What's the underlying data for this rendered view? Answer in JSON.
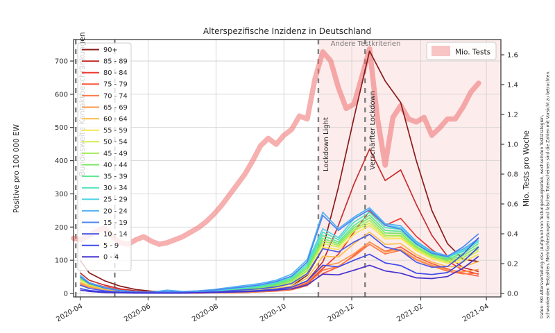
{
  "title": "Alterspezifische Inzidenz in Deutschland",
  "axes": {
    "left_label": "Positive pro 100 000 EW",
    "right_label": "Mio. Tests pro Woche"
  },
  "legend": {
    "tests_label": "Mio. Tests"
  },
  "footnote": {
    "line1": "Daten: RKI Altersverteilung.xlsx |Aufgrund von Testungenauigkeiten, wechselnden Teststrategien,",
    "line2": "schwankenden Testzahlen, Mehrfachtestungen und falschen Totenscheinen sind die Zahlen mit Vorsicht zu betrachten."
  },
  "chart_data": {
    "type": "line",
    "title": "Alterspezifische Inzidenz in Deutschland",
    "x_axis": {
      "range": [
        "2020-03-26",
        "2021-04-14"
      ],
      "tick_dates": [
        "2020-04-01",
        "2020-06-01",
        "2020-08-01",
        "2020-10-01",
        "2020-12-01",
        "2021-02-01",
        "2021-04-01"
      ],
      "tick_labels": [
        "2020-04",
        "2020-06",
        "2020-08",
        "2020-10",
        "2020-12",
        "2021-02",
        "2021-04"
      ]
    },
    "y_left": {
      "label": "Positive pro 100 000 EW",
      "ticks": [
        0,
        100,
        200,
        300,
        400,
        500,
        600,
        700
      ],
      "lim": [
        0,
        765
      ]
    },
    "y_right": {
      "label": "Mio. Tests pro Woche",
      "tick_labels": [
        "0.0",
        "0.2",
        "0.4",
        "0.6",
        "0.8",
        "1.0",
        "1.2",
        "1.4",
        "1.6"
      ],
      "lim": [
        0,
        1.7
      ]
    },
    "grid": true,
    "legend_position": "upper left",
    "series_dates": [
      "2020-04-01",
      "2020-04-09",
      "2020-04-23",
      "2020-05-07",
      "2020-05-21",
      "2020-06-04",
      "2020-06-18",
      "2020-07-02",
      "2020-07-16",
      "2020-07-30",
      "2020-08-13",
      "2020-08-27",
      "2020-09-10",
      "2020-09-24",
      "2020-10-08",
      "2020-10-22",
      "2020-11-05",
      "2020-11-19",
      "2020-12-03",
      "2020-12-17",
      "2020-12-31",
      "2021-01-14",
      "2021-01-28",
      "2021-02-11",
      "2021-02-25",
      "2021-03-11",
      "2021-03-25"
    ],
    "series": [
      {
        "name": "90+",
        "color": "#8b1a1a",
        "values": [
          100,
          62,
          38,
          22,
          12,
          7,
          5,
          4,
          4,
          5,
          6,
          8,
          10,
          14,
          22,
          55,
          135,
          320,
          530,
          730,
          640,
          575,
          400,
          250,
          150,
          103,
          96
        ]
      },
      {
        "name": "85 - 89",
        "color": "#c62e2e",
        "values": [
          62,
          40,
          25,
          14,
          8,
          5,
          3,
          2,
          2,
          3,
          4,
          5,
          7,
          10,
          16,
          38,
          95,
          205,
          330,
          435,
          340,
          372,
          268,
          175,
          112,
          78,
          66
        ]
      },
      {
        "name": "80 - 84",
        "color": "#ee392f",
        "values": [
          48,
          32,
          20,
          11,
          6,
          3,
          2,
          2,
          2,
          2,
          3,
          4,
          6,
          9,
          14,
          30,
          75,
          118,
          185,
          248,
          205,
          226,
          172,
          132,
          98,
          70,
          58
        ]
      },
      {
        "name": "75 - 79",
        "color": "#fb583a",
        "values": [
          32,
          22,
          14,
          8,
          4,
          2,
          2,
          1,
          1,
          2,
          2,
          3,
          5,
          7,
          11,
          24,
          60,
          80,
          115,
          155,
          127,
          140,
          110,
          90,
          74,
          61,
          52
        ]
      },
      {
        "name": "70 - 74",
        "color": "#fd7a45",
        "values": [
          28,
          19,
          12,
          7,
          4,
          2,
          1,
          1,
          1,
          2,
          2,
          3,
          5,
          8,
          13,
          28,
          70,
          82,
          112,
          148,
          119,
          130,
          101,
          83,
          67,
          59,
          61
        ]
      },
      {
        "name": "65 - 69",
        "color": "#fd9a4d",
        "values": [
          30,
          20,
          12,
          7,
          4,
          2,
          2,
          1,
          2,
          2,
          3,
          4,
          6,
          10,
          16,
          34,
          82,
          92,
          120,
          155,
          125,
          133,
          103,
          85,
          71,
          65,
          72
        ]
      },
      {
        "name": "60 - 64",
        "color": "#fcbd4b",
        "values": [
          34,
          22,
          13,
          7,
          4,
          2,
          2,
          2,
          2,
          3,
          4,
          6,
          9,
          14,
          22,
          46,
          112,
          110,
          150,
          185,
          148,
          150,
          117,
          95,
          81,
          80,
          96
        ]
      },
      {
        "name": "55 - 59",
        "color": "#f5e74e",
        "values": [
          40,
          26,
          15,
          8,
          4,
          3,
          2,
          2,
          3,
          4,
          6,
          8,
          12,
          18,
          28,
          58,
          140,
          132,
          178,
          205,
          164,
          166,
          129,
          105,
          91,
          95,
          118
        ]
      },
      {
        "name": "50 - 54",
        "color": "#d0ee50",
        "values": [
          42,
          27,
          15,
          8,
          4,
          3,
          2,
          2,
          3,
          4,
          7,
          10,
          14,
          21,
          33,
          66,
          150,
          140,
          188,
          212,
          170,
          171,
          133,
          109,
          95,
          102,
          128
        ]
      },
      {
        "name": "45 - 49",
        "color": "#a3ec58",
        "values": [
          44,
          28,
          16,
          8,
          4,
          3,
          2,
          2,
          3,
          5,
          8,
          11,
          15,
          23,
          36,
          70,
          158,
          145,
          192,
          220,
          175,
          175,
          137,
          111,
          97,
          108,
          134
        ]
      },
      {
        "name": "40 - 44",
        "color": "#77e765",
        "values": [
          46,
          29,
          16,
          8,
          5,
          3,
          2,
          3,
          4,
          6,
          9,
          13,
          17,
          26,
          40,
          76,
          165,
          150,
          198,
          228,
          182,
          181,
          141,
          115,
          101,
          114,
          142
        ]
      },
      {
        "name": "35 - 39",
        "color": "#5ce88f",
        "values": [
          48,
          30,
          17,
          9,
          5,
          3,
          2,
          3,
          4,
          7,
          11,
          15,
          20,
          29,
          44,
          82,
          175,
          155,
          205,
          236,
          190,
          187,
          147,
          119,
          105,
          120,
          150
        ]
      },
      {
        "name": "30 - 34",
        "color": "#4ee2bd",
        "values": [
          50,
          31,
          17,
          9,
          5,
          3,
          3,
          3,
          5,
          8,
          12,
          17,
          22,
          32,
          48,
          88,
          185,
          162,
          215,
          244,
          198,
          193,
          151,
          123,
          109,
          126,
          156
        ]
      },
      {
        "name": "25 - 29",
        "color": "#4fd4e8",
        "values": [
          52,
          32,
          18,
          9,
          5,
          3,
          3,
          4,
          6,
          9,
          14,
          19,
          25,
          35,
          52,
          94,
          195,
          168,
          225,
          252,
          205,
          199,
          155,
          125,
          111,
          130,
          160
        ]
      },
      {
        "name": "20 - 24",
        "color": "#52b2f5",
        "values": [
          55,
          33,
          18,
          9,
          5,
          4,
          10,
          6,
          8,
          12,
          18,
          24,
          30,
          40,
          58,
          102,
          245,
          195,
          230,
          258,
          210,
          204,
          157,
          127,
          113,
          134,
          165
        ]
      },
      {
        "name": "15 - 19",
        "color": "#4a86f0",
        "values": [
          50,
          30,
          16,
          8,
          5,
          4,
          6,
          5,
          7,
          10,
          15,
          20,
          26,
          36,
          52,
          95,
          235,
          190,
          225,
          252,
          205,
          194,
          149,
          121,
          111,
          140,
          180
        ]
      },
      {
        "name": "10 - 14",
        "color": "#4b59e6",
        "values": [
          25,
          15,
          8,
          4,
          3,
          2,
          2,
          2,
          3,
          5,
          8,
          11,
          14,
          20,
          30,
          60,
          135,
          125,
          155,
          178,
          140,
          129,
          94,
          79,
          81,
          118,
          168
        ]
      },
      {
        "name": "5 - 9",
        "color": "#3e49ea",
        "values": [
          15,
          9,
          5,
          3,
          2,
          1,
          1,
          1,
          2,
          3,
          5,
          7,
          9,
          13,
          19,
          38,
          85,
          80,
          100,
          118,
          92,
          84,
          61,
          57,
          63,
          96,
          140
        ]
      },
      {
        "name": "0 - 4",
        "color": "#4633cf",
        "values": [
          10,
          6,
          3,
          2,
          1,
          1,
          1,
          1,
          2,
          3,
          4,
          5,
          7,
          10,
          14,
          26,
          58,
          56,
          70,
          85,
          68,
          61,
          47,
          45,
          51,
          76,
          112
        ]
      }
    ],
    "tests_series": {
      "name": "Mio. Tests",
      "color": "#ee7070",
      "alpha": 0.55,
      "start_date": "2020-03-26",
      "step_days": 7,
      "values": [
        0.37,
        0.36,
        0.39,
        0.42,
        0.44,
        0.38,
        0.34,
        0.33,
        0.36,
        0.38,
        0.35,
        0.33,
        0.34,
        0.36,
        0.38,
        0.41,
        0.44,
        0.48,
        0.53,
        0.59,
        0.66,
        0.73,
        0.8,
        0.89,
        0.99,
        1.04,
        1.0,
        1.06,
        1.1,
        1.19,
        1.17,
        1.44,
        1.62,
        1.56,
        1.38,
        1.24,
        1.27,
        1.45,
        1.64,
        1.18,
        0.86,
        1.18,
        1.26,
        1.17,
        1.15,
        1.18,
        1.06,
        1.11,
        1.17,
        1.17,
        1.25,
        1.35,
        1.41
      ]
    },
    "events": [
      {
        "date": "2020-03-28",
        "label": "Bundesweite Kontaktbeschränkungen"
      },
      {
        "date": "2020-05-02",
        "label": ""
      },
      {
        "date": "2020-11-01",
        "label": "Lockdown Light"
      },
      {
        "date": "2020-12-13",
        "label": "Verschärfter Lockdown"
      }
    ],
    "shaded_region": {
      "from": "2020-11-01",
      "to": "2021-04-14",
      "label": "Andere Testkriterien",
      "color": "#ef7676",
      "alpha": 0.14
    }
  }
}
